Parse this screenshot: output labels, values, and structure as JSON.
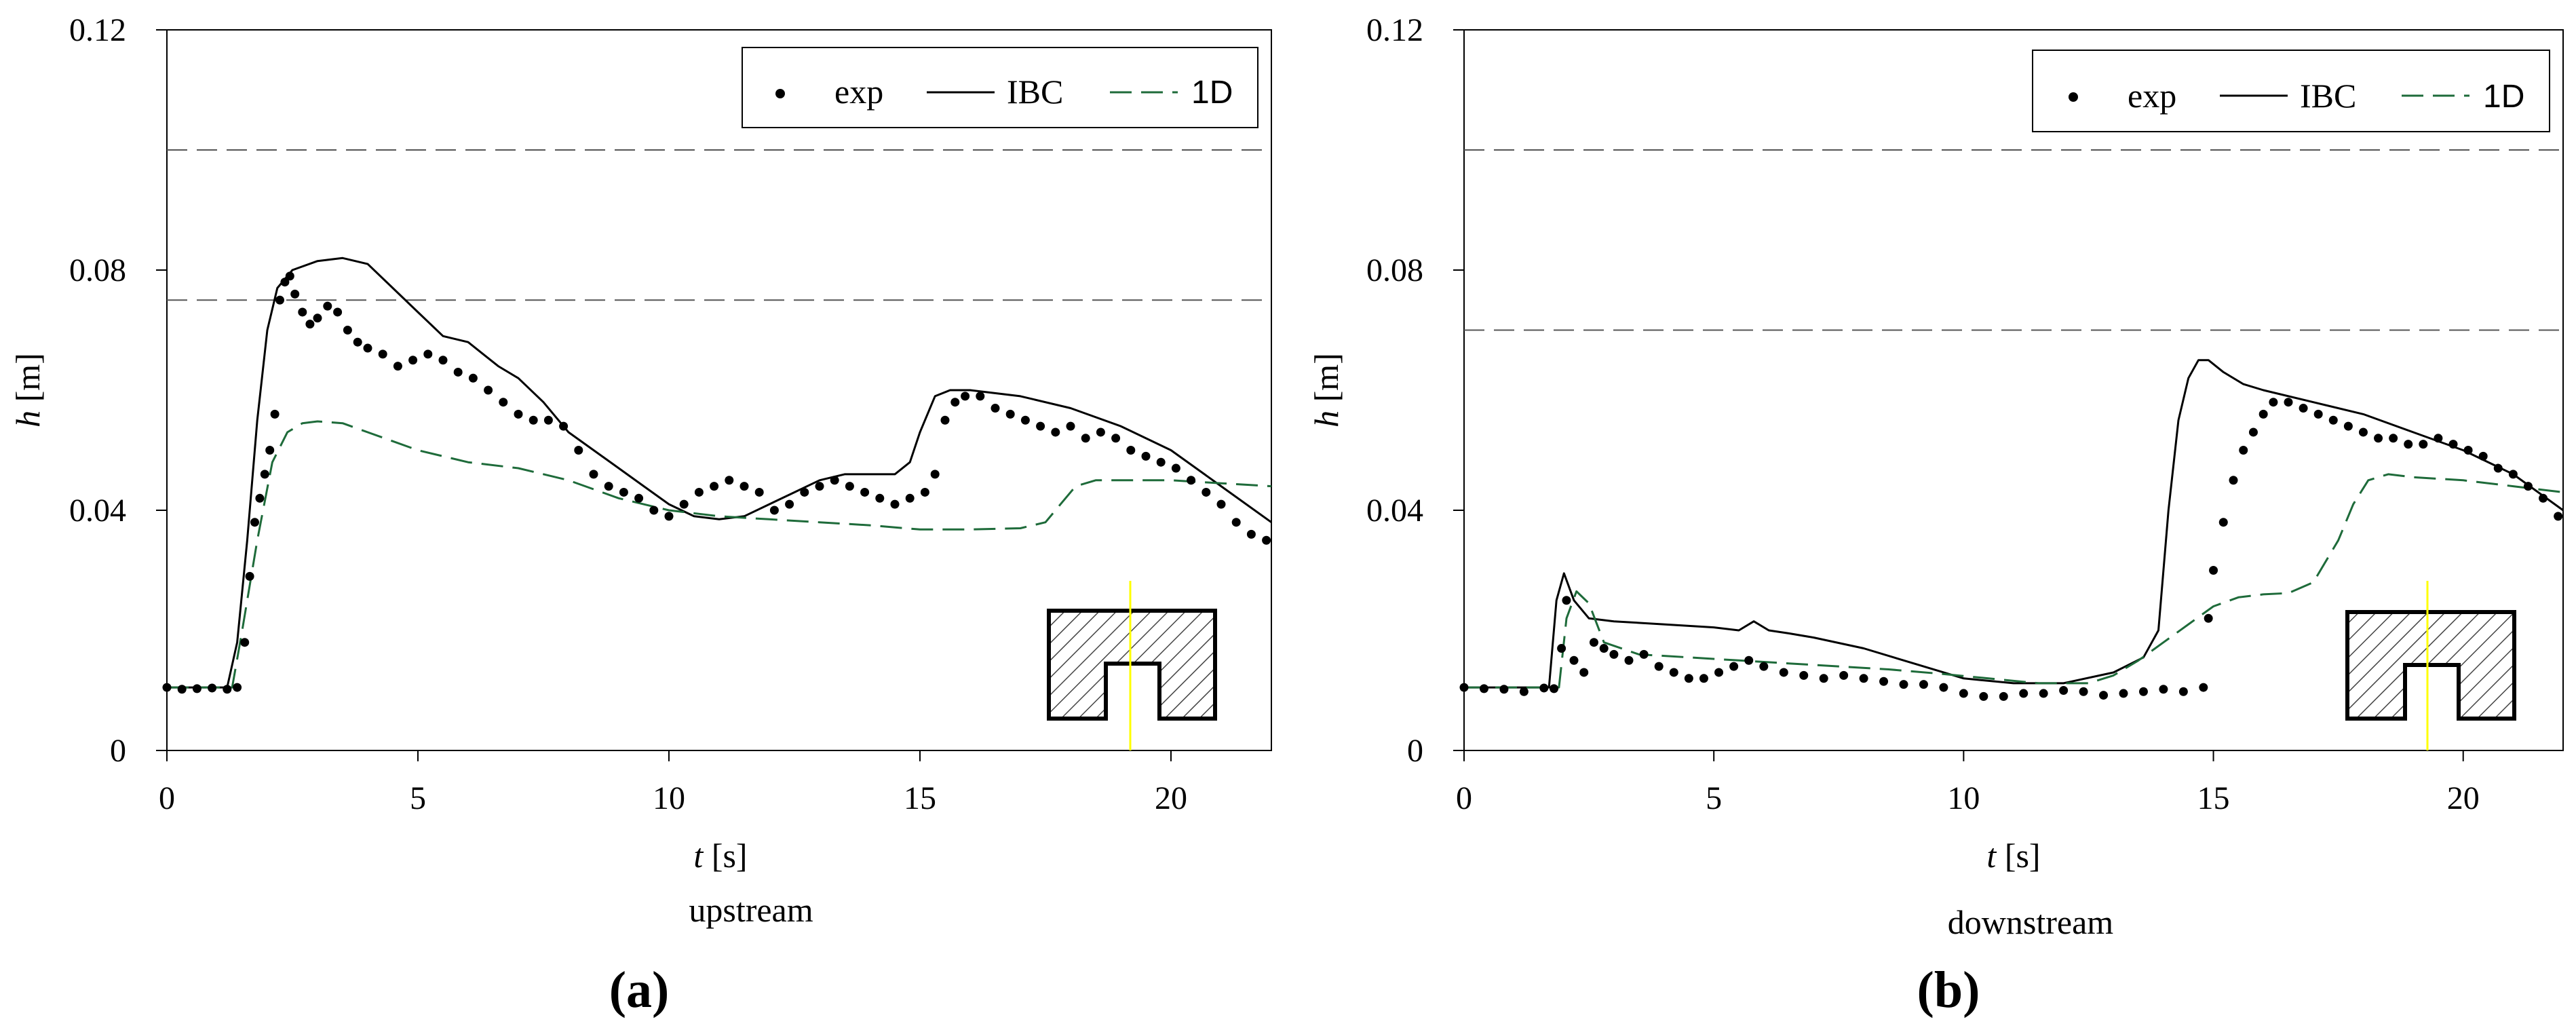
{
  "chart_data": [
    {
      "panel_label": "(a)",
      "caption": "upstream",
      "type": "line",
      "xlabel_var": "t",
      "xlabel_unit": "[s]",
      "ylabel_var": "h",
      "ylabel_unit": "[m]",
      "xlim": [
        0,
        22
      ],
      "ylim": [
        0,
        0.12
      ],
      "xticks": [
        0,
        5,
        10,
        15,
        20
      ],
      "xtick_labels": [
        "0",
        "5",
        "10",
        "15",
        "20"
      ],
      "yticks": [
        0,
        0.04,
        0.08,
        0.12
      ],
      "ytick_labels": [
        "0",
        "0.04",
        "0.08",
        "0.12"
      ],
      "grid": false,
      "legend_position": "top-right",
      "legend": [
        "exp",
        "IBC",
        "1D"
      ],
      "reference_lines_y": [
        0.1,
        0.075
      ],
      "colors": {
        "exp": "#000000",
        "IBC": "#000000",
        "1D": "#1e6b3a",
        "ref": "#555555",
        "inset_line": "#ffff00"
      },
      "series": [
        {
          "name": "exp",
          "style": "points",
          "x": [
            0,
            0.3,
            0.6,
            0.9,
            1.2,
            1.4,
            1.55,
            1.65,
            1.75,
            1.85,
            1.95,
            2.05,
            2.15,
            2.25,
            2.35,
            2.45,
            2.55,
            2.7,
            2.85,
            3.0,
            3.2,
            3.4,
            3.6,
            3.8,
            4.0,
            4.3,
            4.6,
            4.9,
            5.2,
            5.5,
            5.8,
            6.1,
            6.4,
            6.7,
            7.0,
            7.3,
            7.6,
            7.9,
            8.2,
            8.5,
            8.8,
            9.1,
            9.4,
            9.7,
            10.0,
            10.3,
            10.6,
            10.9,
            11.2,
            11.5,
            11.8,
            12.1,
            12.4,
            12.7,
            13.0,
            13.3,
            13.6,
            13.9,
            14.2,
            14.5,
            14.8,
            15.1,
            15.3,
            15.5,
            15.7,
            15.9,
            16.2,
            16.5,
            16.8,
            17.1,
            17.4,
            17.7,
            18.0,
            18.3,
            18.6,
            18.9,
            19.2,
            19.5,
            19.8,
            20.1,
            20.4,
            20.7,
            21.0,
            21.3,
            21.6,
            21.9
          ],
          "y": [
            0.0105,
            0.0102,
            0.0103,
            0.0104,
            0.0102,
            0.0105,
            0.018,
            0.029,
            0.038,
            0.042,
            0.046,
            0.05,
            0.056,
            0.075,
            0.078,
            0.079,
            0.076,
            0.073,
            0.071,
            0.072,
            0.074,
            0.073,
            0.07,
            0.068,
            0.067,
            0.066,
            0.064,
            0.065,
            0.066,
            0.065,
            0.063,
            0.062,
            0.06,
            0.058,
            0.056,
            0.055,
            0.055,
            0.054,
            0.05,
            0.046,
            0.044,
            0.043,
            0.042,
            0.04,
            0.039,
            0.041,
            0.043,
            0.044,
            0.045,
            0.044,
            0.043,
            0.04,
            0.041,
            0.043,
            0.044,
            0.045,
            0.044,
            0.043,
            0.042,
            0.041,
            0.042,
            0.043,
            0.046,
            0.055,
            0.058,
            0.059,
            0.059,
            0.057,
            0.056,
            0.055,
            0.054,
            0.053,
            0.054,
            0.052,
            0.053,
            0.052,
            0.05,
            0.049,
            0.048,
            0.047,
            0.045,
            0.043,
            0.041,
            0.038,
            0.036,
            0.035
          ]
        },
        {
          "name": "IBC",
          "style": "solid",
          "x": [
            0,
            1.2,
            1.4,
            1.6,
            1.8,
            2.0,
            2.2,
            2.5,
            3.0,
            3.5,
            4.0,
            4.5,
            5.0,
            5.5,
            6.0,
            6.3,
            6.6,
            7.0,
            7.5,
            8.0,
            8.5,
            9.0,
            9.5,
            10.0,
            10.5,
            11.0,
            11.5,
            12.0,
            12.5,
            13.0,
            13.5,
            14.0,
            14.5,
            14.8,
            15.0,
            15.3,
            15.6,
            16.0,
            17.0,
            18.0,
            19.0,
            20.0,
            21.0,
            22.0
          ],
          "y": [
            0.0105,
            0.0105,
            0.018,
            0.035,
            0.055,
            0.07,
            0.077,
            0.08,
            0.0815,
            0.082,
            0.081,
            0.077,
            0.073,
            0.069,
            0.068,
            0.066,
            0.064,
            0.062,
            0.058,
            0.053,
            0.05,
            0.047,
            0.044,
            0.041,
            0.039,
            0.0385,
            0.039,
            0.041,
            0.043,
            0.045,
            0.046,
            0.046,
            0.046,
            0.048,
            0.053,
            0.059,
            0.06,
            0.06,
            0.059,
            0.057,
            0.054,
            0.05,
            0.044,
            0.038
          ]
        },
        {
          "name": "1D",
          "style": "dashed",
          "x": [
            0,
            1.3,
            1.5,
            1.8,
            2.1,
            2.4,
            2.7,
            3.0,
            3.5,
            4.0,
            5.0,
            6.0,
            7.0,
            8.0,
            9.0,
            10.0,
            11.0,
            12.0,
            13.0,
            14.0,
            15.0,
            16.0,
            17.0,
            17.5,
            17.8,
            18.1,
            18.5,
            19.0,
            20.0,
            21.0,
            22.0
          ],
          "y": [
            0.0105,
            0.0105,
            0.02,
            0.035,
            0.048,
            0.053,
            0.0545,
            0.0548,
            0.0545,
            0.053,
            0.05,
            0.048,
            0.047,
            0.045,
            0.042,
            0.04,
            0.039,
            0.0385,
            0.038,
            0.0375,
            0.0368,
            0.0368,
            0.037,
            0.038,
            0.041,
            0.044,
            0.045,
            0.045,
            0.045,
            0.0445,
            0.044
          ]
        }
      ]
    },
    {
      "panel_label": "(b)",
      "caption": "downstream",
      "type": "line",
      "xlabel_var": "t",
      "xlabel_unit": "[s]",
      "ylabel_var": "h",
      "ylabel_unit": "[m]",
      "xlim": [
        0,
        22
      ],
      "ylim": [
        0,
        0.12
      ],
      "xticks": [
        0,
        5,
        10,
        15,
        20
      ],
      "xtick_labels": [
        "0",
        "5",
        "10",
        "15",
        "20"
      ],
      "yticks": [
        0,
        0.04,
        0.08,
        0.12
      ],
      "ytick_labels": [
        "0",
        "0.04",
        "0.08",
        "0.12"
      ],
      "grid": false,
      "legend_position": "top-right",
      "legend": [
        "exp",
        "IBC",
        "1D"
      ],
      "reference_lines_y": [
        0.1,
        0.07
      ],
      "colors": {
        "exp": "#000000",
        "IBC": "#000000",
        "1D": "#1e6b3a",
        "ref": "#555555",
        "inset_line": "#ffff00"
      },
      "series": [
        {
          "name": "exp",
          "style": "points",
          "x": [
            0,
            0.4,
            0.8,
            1.2,
            1.6,
            1.8,
            1.95,
            2.05,
            2.2,
            2.4,
            2.6,
            2.8,
            3.0,
            3.3,
            3.6,
            3.9,
            4.2,
            4.5,
            4.8,
            5.1,
            5.4,
            5.7,
            6.0,
            6.4,
            6.8,
            7.2,
            7.6,
            8.0,
            8.4,
            8.8,
            9.2,
            9.6,
            10.0,
            10.4,
            10.8,
            11.2,
            11.6,
            12.0,
            12.4,
            12.8,
            13.2,
            13.6,
            14.0,
            14.4,
            14.8,
            14.9,
            15.0,
            15.2,
            15.4,
            15.6,
            15.8,
            16.0,
            16.2,
            16.5,
            16.8,
            17.1,
            17.4,
            17.7,
            18.0,
            18.3,
            18.6,
            18.9,
            19.2,
            19.5,
            19.8,
            20.1,
            20.4,
            20.7,
            21.0,
            21.3,
            21.6,
            21.9
          ],
          "y": [
            0.0105,
            0.0103,
            0.0102,
            0.0098,
            0.0104,
            0.0103,
            0.017,
            0.025,
            0.015,
            0.013,
            0.018,
            0.017,
            0.016,
            0.015,
            0.016,
            0.014,
            0.013,
            0.012,
            0.012,
            0.013,
            0.014,
            0.015,
            0.014,
            0.013,
            0.0125,
            0.012,
            0.0125,
            0.012,
            0.0115,
            0.011,
            0.011,
            0.0105,
            0.0095,
            0.009,
            0.009,
            0.0095,
            0.0095,
            0.01,
            0.0098,
            0.0092,
            0.0095,
            0.0098,
            0.0102,
            0.0098,
            0.0105,
            0.022,
            0.03,
            0.038,
            0.045,
            0.05,
            0.053,
            0.056,
            0.058,
            0.058,
            0.057,
            0.056,
            0.055,
            0.054,
            0.053,
            0.052,
            0.052,
            0.051,
            0.051,
            0.052,
            0.051,
            0.05,
            0.049,
            0.047,
            0.046,
            0.044,
            0.042,
            0.039
          ]
        },
        {
          "name": "IBC",
          "style": "solid",
          "x": [
            0,
            1.7,
            1.85,
            2.0,
            2.2,
            2.5,
            3.0,
            4.0,
            5.0,
            5.5,
            5.8,
            6.1,
            6.5,
            7.0,
            8.0,
            9.0,
            10.0,
            11.0,
            12.0,
            13.0,
            13.6,
            13.9,
            14.1,
            14.3,
            14.5,
            14.7,
            14.9,
            15.2,
            15.6,
            16.0,
            17.0,
            18.0,
            19.0,
            20.0,
            21.0,
            22.0
          ],
          "y": [
            0.0105,
            0.0105,
            0.025,
            0.0295,
            0.025,
            0.022,
            0.0215,
            0.021,
            0.0205,
            0.02,
            0.0215,
            0.02,
            0.0195,
            0.0188,
            0.017,
            0.0145,
            0.012,
            0.0112,
            0.0112,
            0.013,
            0.0155,
            0.02,
            0.04,
            0.055,
            0.062,
            0.065,
            0.065,
            0.063,
            0.061,
            0.06,
            0.058,
            0.056,
            0.053,
            0.05,
            0.046,
            0.04
          ]
        },
        {
          "name": "1D",
          "style": "dashed",
          "x": [
            0,
            1.9,
            2.05,
            2.25,
            2.5,
            2.8,
            3.5,
            4.5,
            5.5,
            6.5,
            7.5,
            8.5,
            9.5,
            10.5,
            11.5,
            12.5,
            13.0,
            13.5,
            14.0,
            14.5,
            15.0,
            15.5,
            16.0,
            16.5,
            17.0,
            17.5,
            17.8,
            18.1,
            18.5,
            19.0,
            20.0,
            21.0,
            22.0
          ],
          "y": [
            0.0105,
            0.0105,
            0.022,
            0.0265,
            0.0245,
            0.018,
            0.016,
            0.0155,
            0.015,
            0.0145,
            0.014,
            0.0135,
            0.0128,
            0.012,
            0.0112,
            0.0112,
            0.0125,
            0.015,
            0.018,
            0.021,
            0.024,
            0.0255,
            0.026,
            0.0262,
            0.028,
            0.035,
            0.041,
            0.045,
            0.046,
            0.0455,
            0.045,
            0.044,
            0.043
          ]
        }
      ]
    }
  ]
}
